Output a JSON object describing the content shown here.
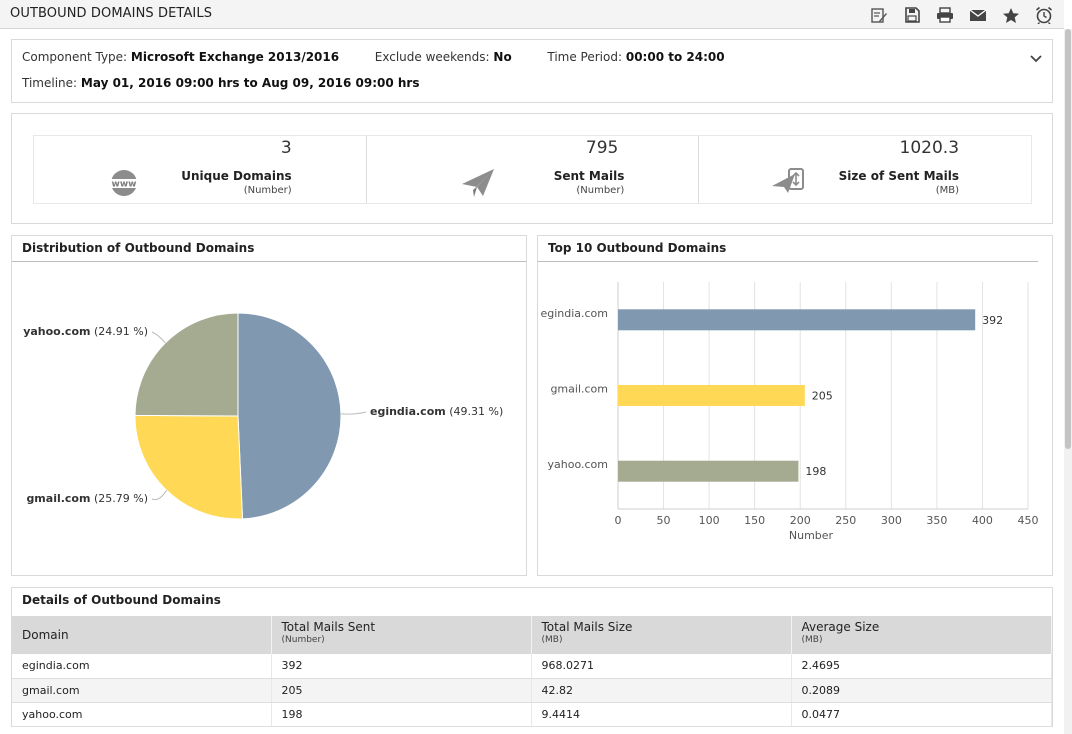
{
  "page_title": "OUTBOUND DOMAINS DETAILS",
  "toolbar": [
    "edit-notes-icon",
    "save-icon",
    "print-icon",
    "mail-icon",
    "favorite-star-icon",
    "alarm-clock-icon"
  ],
  "info": {
    "component_type_label": "Component Type:",
    "component_type_value": "Microsoft Exchange 2013/2016",
    "exclude_weekends_label": "Exclude weekends:",
    "exclude_weekends_value": "No",
    "time_period_label": "Time Period:",
    "time_period_value": "00:00 to 24:00",
    "timeline_label": "Timeline:",
    "timeline_value": "May 01, 2016 09:00 hrs to Aug 09, 2016 09:00 hrs"
  },
  "kpis": [
    {
      "value": "3",
      "label": "Unique Domains",
      "unit": "(Number)",
      "icon": "www-icon"
    },
    {
      "value": "795",
      "label": "Sent Mails",
      "unit": "(Number)",
      "icon": "paper-plane-icon"
    },
    {
      "value": "1020.3",
      "label": "Size of Sent Mails",
      "unit": "(MB)",
      "icon": "mail-size-icon"
    }
  ],
  "pie_panel": {
    "title": "Distribution of Outbound Domains"
  },
  "bar_panel": {
    "title": "Top 10 Outbound Domains"
  },
  "chart_data": [
    {
      "type": "pie",
      "title": "Distribution of Outbound Domains",
      "slices": [
        {
          "label": "egindia.com",
          "value": 49.31,
          "display": "egindia.com (49.31 %)",
          "color": "#8099b0"
        },
        {
          "label": "gmail.com",
          "value": 25.79,
          "display": "gmail.com (25.79 %)",
          "color": "#ffd955"
        },
        {
          "label": "yahoo.com",
          "value": 24.91,
          "display": "yahoo.com (24.91 %)",
          "color": "#a4ab91"
        }
      ]
    },
    {
      "type": "bar",
      "orientation": "horizontal",
      "title": "Top 10 Outbound Domains",
      "categories": [
        "egindia.com",
        "gmail.com",
        "yahoo.com"
      ],
      "values": [
        392,
        205,
        198
      ],
      "colors": [
        "#8099b0",
        "#ffd955",
        "#a4ab91"
      ],
      "xlabel": "Number",
      "xlim": [
        0,
        450
      ],
      "xticks": [
        0,
        50,
        100,
        150,
        200,
        250,
        300,
        350,
        400,
        450
      ],
      "grid": true
    }
  ],
  "table": {
    "title": "Details of Outbound Domains",
    "columns": [
      {
        "label": "Domain",
        "unit": ""
      },
      {
        "label": "Total Mails Sent",
        "unit": "(Number)"
      },
      {
        "label": "Total Mails Size",
        "unit": "(MB)"
      },
      {
        "label": "Average Size",
        "unit": "(MB)"
      }
    ],
    "rows": [
      [
        "egindia.com",
        "392",
        "968.0271",
        "2.4695"
      ],
      [
        "gmail.com",
        "205",
        "42.82",
        "0.2089"
      ],
      [
        "yahoo.com",
        "198",
        "9.4414",
        "0.0477"
      ]
    ]
  }
}
